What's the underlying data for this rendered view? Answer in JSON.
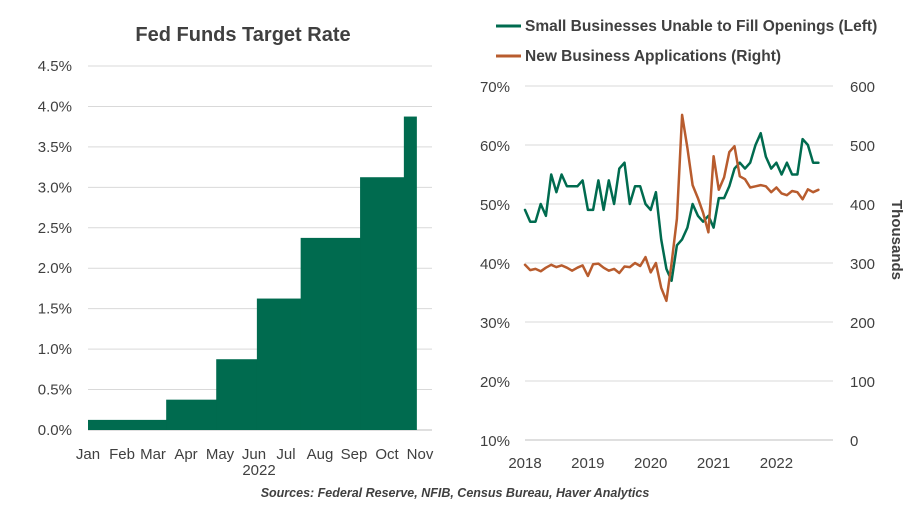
{
  "colors": {
    "green": "#006B4F",
    "orange": "#B85C2E",
    "grid": "#D9D9D9",
    "axis": "#BFBFBF",
    "text": "#404040"
  },
  "source": "Sources: Federal Reserve, NFIB, Census Bureau, Haver Analytics",
  "chart_data": [
    {
      "type": "area",
      "title": "Fed Funds Target Rate",
      "xlabel_year": "2022",
      "categories": [
        "Jan",
        "Feb",
        "Mar",
        "Apr",
        "May",
        "Jun",
        "Jul",
        "Aug",
        "Sep",
        "Oct",
        "Nov"
      ],
      "y_ticks": [
        "0.0%",
        "0.5%",
        "1.0%",
        "1.5%",
        "2.0%",
        "2.5%",
        "3.0%",
        "3.5%",
        "4.0%",
        "4.5%"
      ],
      "ylim": [
        0,
        4.5
      ],
      "steps": [
        {
          "start": 0.0,
          "end": 2.5,
          "value": 0.125
        },
        {
          "start": 2.5,
          "end": 4.1,
          "value": 0.375
        },
        {
          "start": 4.1,
          "end": 5.4,
          "value": 0.875
        },
        {
          "start": 5.4,
          "end": 6.8,
          "value": 1.625
        },
        {
          "start": 6.8,
          "end": 8.7,
          "value": 2.375
        },
        {
          "start": 8.7,
          "end": 10.1,
          "value": 3.125
        },
        {
          "start": 10.1,
          "end": 10.5,
          "value": 3.875
        }
      ]
    },
    {
      "type": "line",
      "legend": [
        "Small Businesses Unable to Fill Openings (Left)",
        "New Business Applications (Right)"
      ],
      "ylabel_right": "Thousands",
      "x_ticks": [
        "2018",
        "2019",
        "2020",
        "2021",
        "2022"
      ],
      "xlim": [
        2018.0,
        2022.9
      ],
      "y_left_ticks": [
        "10%",
        "20%",
        "30%",
        "40%",
        "50%",
        "60%",
        "70%"
      ],
      "ylim_left": [
        10,
        70
      ],
      "y_right_ticks": [
        "0",
        "100",
        "200",
        "300",
        "400",
        "500",
        "600"
      ],
      "ylim_right": [
        0,
        600
      ],
      "series": [
        {
          "name": "Small Businesses Unable to Fill Openings (Left)",
          "axis": "left",
          "x": [
            2018.0,
            2018.083,
            2018.167,
            2018.25,
            2018.333,
            2018.417,
            2018.5,
            2018.583,
            2018.667,
            2018.75,
            2018.833,
            2018.917,
            2019.0,
            2019.083,
            2019.167,
            2019.25,
            2019.333,
            2019.417,
            2019.5,
            2019.583,
            2019.667,
            2019.75,
            2019.833,
            2019.917,
            2020.0,
            2020.083,
            2020.167,
            2020.25,
            2020.333,
            2020.417,
            2020.5,
            2020.583,
            2020.667,
            2020.75,
            2020.833,
            2020.917,
            2021.0,
            2021.083,
            2021.167,
            2021.25,
            2021.333,
            2021.417,
            2021.5,
            2021.583,
            2021.667,
            2021.75,
            2021.833,
            2021.917,
            2022.0,
            2022.083,
            2022.167,
            2022.25,
            2022.333,
            2022.417,
            2022.5,
            2022.583,
            2022.667
          ],
          "values": [
            49,
            47,
            47,
            50,
            48,
            55,
            52,
            55,
            53,
            53,
            53,
            54,
            49,
            49,
            54,
            49,
            54,
            50,
            56,
            57,
            50,
            53,
            53,
            50,
            49,
            52,
            44,
            39,
            37,
            43,
            44,
            46,
            50,
            48,
            47,
            48,
            46,
            51,
            51,
            53,
            56,
            57,
            56,
            57,
            60,
            62,
            58,
            56,
            57,
            55,
            57,
            55,
            55,
            61,
            60,
            57,
            57
          ]
        },
        {
          "name": "New Business Applications (Right)",
          "axis": "right",
          "x": [
            2018.0,
            2018.083,
            2018.167,
            2018.25,
            2018.333,
            2018.417,
            2018.5,
            2018.583,
            2018.667,
            2018.75,
            2018.833,
            2018.917,
            2019.0,
            2019.083,
            2019.167,
            2019.25,
            2019.333,
            2019.417,
            2019.5,
            2019.583,
            2019.667,
            2019.75,
            2019.833,
            2019.917,
            2020.0,
            2020.083,
            2020.167,
            2020.25,
            2020.333,
            2020.417,
            2020.5,
            2020.583,
            2020.667,
            2020.75,
            2020.833,
            2020.917,
            2021.0,
            2021.083,
            2021.167,
            2021.25,
            2021.333,
            2021.417,
            2021.5,
            2021.583,
            2021.667,
            2021.75,
            2021.833,
            2021.917,
            2022.0,
            2022.083,
            2022.167,
            2022.25,
            2022.333,
            2022.417,
            2022.5,
            2022.583,
            2022.667
          ],
          "values": [
            297,
            288,
            290,
            286,
            292,
            297,
            293,
            296,
            292,
            287,
            292,
            296,
            278,
            298,
            299,
            292,
            287,
            290,
            283,
            294,
            293,
            300,
            295,
            310,
            284,
            300,
            258,
            236,
            300,
            375,
            551,
            495,
            432,
            410,
            385,
            352,
            481,
            424,
            445,
            488,
            498,
            447,
            442,
            428,
            430,
            432,
            430,
            420,
            428,
            418,
            415,
            422,
            420,
            408,
            425,
            420,
            424
          ]
        }
      ]
    }
  ]
}
